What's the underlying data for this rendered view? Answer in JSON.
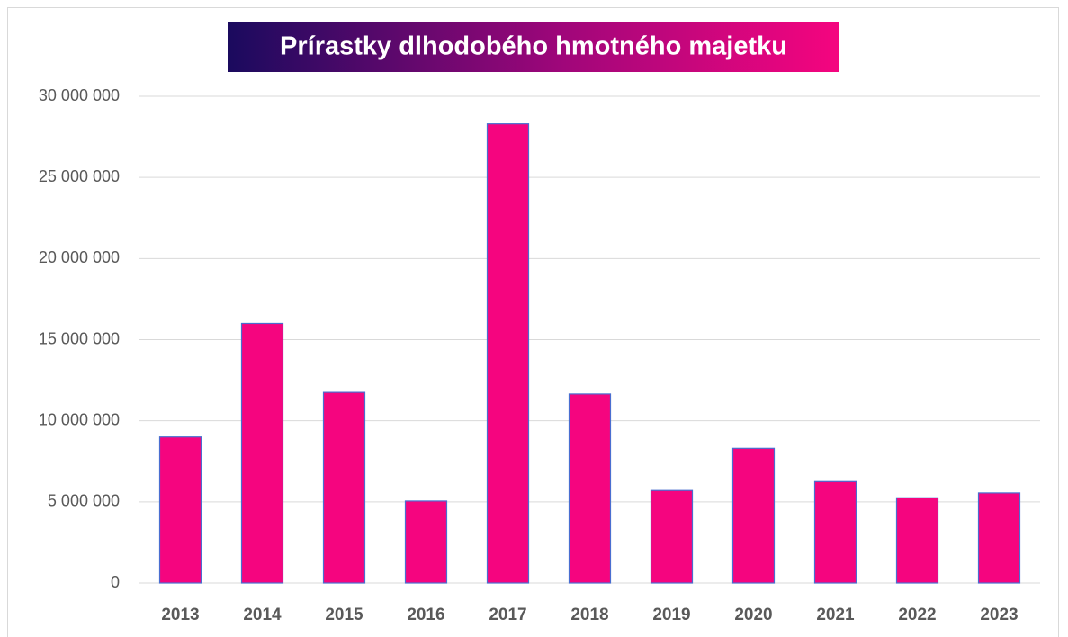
{
  "chart_data": {
    "type": "bar",
    "title": "Prírastky dlhodobého hmotného majetku",
    "categories": [
      "2013",
      "2014",
      "2015",
      "2016",
      "2017",
      "2018",
      "2019",
      "2020",
      "2021",
      "2022",
      "2023"
    ],
    "values": [
      9000000,
      16000000,
      11750000,
      5050000,
      28300000,
      11650000,
      5700000,
      8300000,
      6250000,
      5250000,
      5550000
    ],
    "color": "#f5057f",
    "ylim": [
      0,
      30000000
    ],
    "yticks": [
      0,
      {
        "value": 5000000,
        "label": "5 000 000"
      },
      {
        "value": 10000000,
        "label": "10 000 000"
      },
      {
        "value": 15000000,
        "label": "15 000 000"
      },
      {
        "value": 20000000,
        "label": "20 000 000"
      },
      {
        "value": 25000000,
        "label": "25 000 000"
      },
      {
        "value": 30000000,
        "label": "30 000 000"
      }
    ],
    "grid": true
  }
}
